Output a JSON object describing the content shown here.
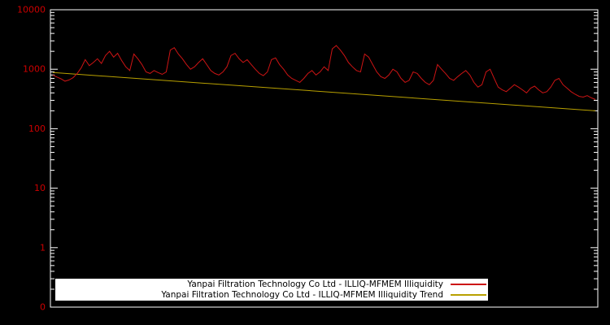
{
  "chart_data": {
    "type": "line",
    "title": "",
    "xlabel": "",
    "ylabel": "",
    "y_scale": "log",
    "ylim": [
      0.1,
      10000
    ],
    "y_tick_labels": [
      "10000",
      "1000",
      "100",
      "10",
      "1",
      "0"
    ],
    "y_tick_values": [
      10000,
      1000,
      100,
      10,
      1,
      0.1
    ],
    "x_tick_labels": [],
    "grid": false,
    "legend_position": "bottom-center",
    "frame_color": "#ffffff",
    "background_color": "#000000",
    "tick_label_color": "#cc0000",
    "series": [
      {
        "name": "Yanpai Filtration Technology Co Ltd - ILLIQ-MFMEM Illiquidity",
        "color": "#cc1414",
        "values": [
          800,
          740,
          690,
          630,
          660,
          720,
          850,
          1050,
          1450,
          1150,
          1300,
          1500,
          1250,
          1700,
          2000,
          1600,
          1850,
          1400,
          1100,
          950,
          1800,
          1500,
          1200,
          900,
          850,
          950,
          880,
          820,
          900,
          2100,
          2300,
          1800,
          1500,
          1200,
          1000,
          1100,
          1300,
          1500,
          1200,
          950,
          850,
          800,
          900,
          1100,
          1700,
          1850,
          1500,
          1300,
          1450,
          1200,
          1000,
          850,
          780,
          900,
          1450,
          1550,
          1200,
          1000,
          800,
          700,
          650,
          600,
          700,
          850,
          950,
          800,
          900,
          1100,
          950,
          2200,
          2500,
          2100,
          1700,
          1300,
          1100,
          950,
          900,
          1800,
          1600,
          1200,
          900,
          750,
          700,
          800,
          1000,
          900,
          700,
          600,
          650,
          900,
          850,
          700,
          600,
          550,
          650,
          1200,
          1000,
          850,
          700,
          650,
          750,
          850,
          950,
          800,
          600,
          500,
          550,
          900,
          1000,
          700,
          500,
          450,
          420,
          480,
          550,
          500,
          450,
          400,
          480,
          520,
          450,
          400,
          420,
          500,
          650,
          700,
          550,
          480,
          420,
          380,
          350,
          340,
          360,
          330,
          310
        ]
      },
      {
        "name": "Yanpai Filtration Technology Co Ltd - ILLIQ-MFMEM Illiquidity Trend",
        "color": "#b8a000",
        "values": [
          880,
          200
        ]
      }
    ]
  }
}
